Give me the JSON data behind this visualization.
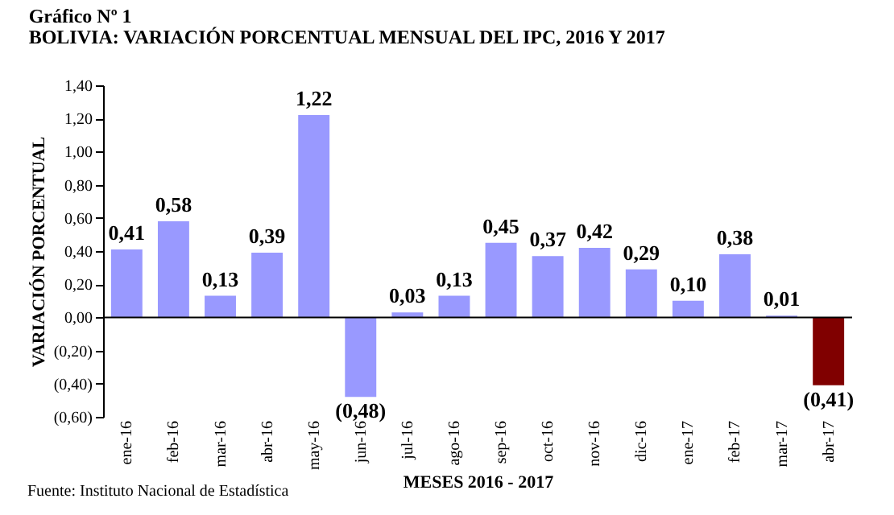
{
  "chart_data": {
    "type": "bar",
    "title": "Gráfico Nº 1",
    "subtitle": "BOLIVIA: VARIACIÓN PORCENTUAL MENSUAL DEL IPC, 2016 Y 2017",
    "xlabel": "MESES 2016 - 2017",
    "ylabel": "VARIACIÓN PORCENTUAL",
    "annotations": [
      "Fuente: Instituto Nacional de Estadística"
    ],
    "categories": [
      "ene-16",
      "feb-16",
      "mar-16",
      "abr-16",
      "may-16",
      "jun-16",
      "jul-16",
      "ago-16",
      "sep-16",
      "oct-16",
      "nov-16",
      "dic-16",
      "ene-17",
      "feb-17",
      "mar-17",
      "abr-17"
    ],
    "values": [
      0.41,
      0.58,
      0.13,
      0.39,
      1.22,
      -0.48,
      0.03,
      0.13,
      0.45,
      0.37,
      0.42,
      0.29,
      0.1,
      0.38,
      0.01,
      -0.41
    ],
    "colors": [
      "#9999ff",
      "#9999ff",
      "#9999ff",
      "#9999ff",
      "#9999ff",
      "#9999ff",
      "#9999ff",
      "#9999ff",
      "#9999ff",
      "#9999ff",
      "#9999ff",
      "#9999ff",
      "#9999ff",
      "#9999ff",
      "#9999ff",
      "#800000"
    ],
    "value_labels": [
      "0,41",
      "0,58",
      "0,13",
      "0,39",
      "1,22",
      "(0,48)",
      "0,03",
      "0,13",
      "0,45",
      "0,37",
      "0,42",
      "0,29",
      "0,10",
      "0,38",
      "0,01",
      "(0,41)"
    ],
    "ylim": [
      -0.6,
      1.4
    ],
    "yticks": [
      {
        "value": -0.6,
        "label": "(0,60)"
      },
      {
        "value": -0.4,
        "label": "(0,40)"
      },
      {
        "value": -0.2,
        "label": "(0,20)"
      },
      {
        "value": 0,
        "label": "0,00"
      },
      {
        "value": 0.2,
        "label": "0,20"
      },
      {
        "value": 0.4,
        "label": "0,40"
      },
      {
        "value": 0.6,
        "label": "0,60"
      },
      {
        "value": 0.8,
        "label": "0,80"
      },
      {
        "value": 1.0,
        "label": "1,00"
      },
      {
        "value": 1.2,
        "label": "1,20"
      },
      {
        "value": 1.4,
        "label": "1,40"
      }
    ],
    "ref_lines": [
      {
        "axis": "y",
        "value": 0
      }
    ],
    "grid": false,
    "legend": false
  }
}
